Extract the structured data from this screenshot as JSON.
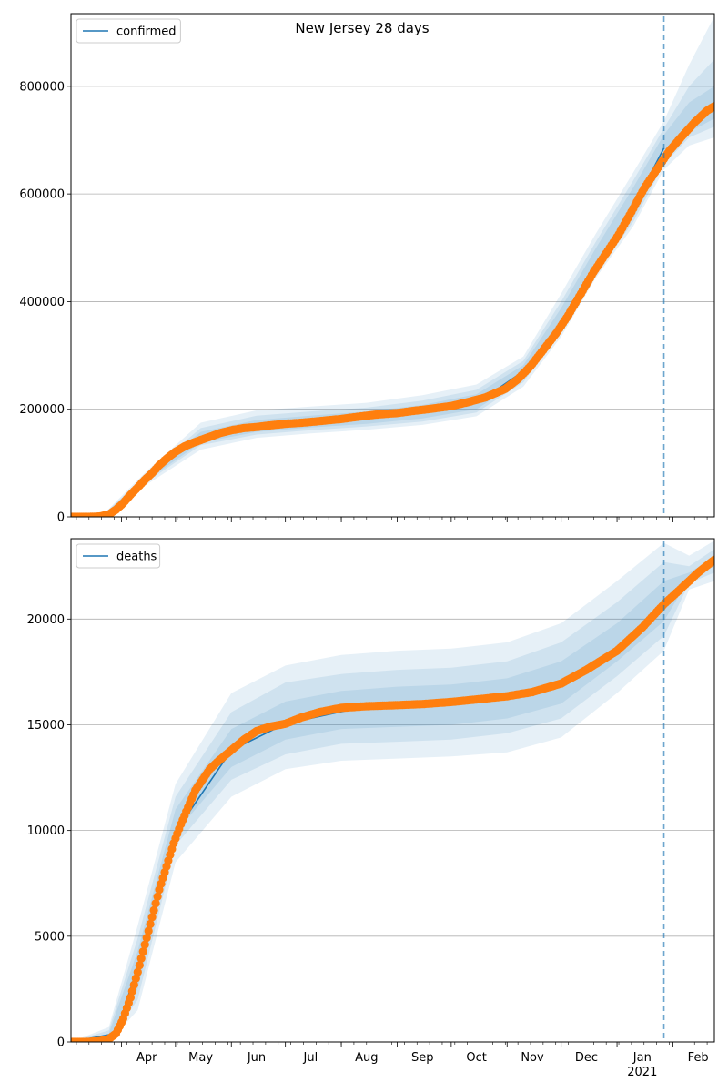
{
  "title": "New Jersey 28 days",
  "x_axis": {
    "month_labels": [
      "Apr",
      "May",
      "Jun",
      "Jul",
      "Aug",
      "Sep",
      "Oct",
      "Nov",
      "Dec",
      "Jan",
      "Feb"
    ],
    "year_label": "2021"
  },
  "colors": {
    "observed": "#ff7f0e",
    "model": "#1f77b4",
    "band": "#1f77b4",
    "grid": "#b0b0b0",
    "cutoff": "#1f77b4"
  },
  "chart_data": [
    {
      "type": "line",
      "title": "New Jersey 28 days",
      "legend": [
        "confirmed"
      ],
      "legend_placement": "top-left",
      "grid": "horizontal",
      "xlim": [
        "2020-03-04",
        "2021-02-24"
      ],
      "ylim": [
        0,
        935000
      ],
      "yticks": [
        0,
        200000,
        400000,
        600000,
        800000
      ],
      "forecast_start": "2021-01-27",
      "observed_points": [
        [
          "2020-03-04",
          0
        ],
        [
          "2020-03-10",
          15
        ],
        [
          "2020-03-15",
          100
        ],
        [
          "2020-03-20",
          890
        ],
        [
          "2020-03-25",
          4400
        ],
        [
          "2020-03-29",
          13400
        ],
        [
          "2020-04-02",
          25600
        ],
        [
          "2020-04-06",
          41000
        ],
        [
          "2020-04-10",
          54600
        ],
        [
          "2020-04-14",
          68800
        ],
        [
          "2020-04-18",
          81400
        ],
        [
          "2020-04-22",
          95900
        ],
        [
          "2020-04-26",
          108000
        ],
        [
          "2020-05-01",
          121000
        ],
        [
          "2020-05-06",
          131000
        ],
        [
          "2020-05-11",
          138000
        ],
        [
          "2020-05-16",
          144000
        ],
        [
          "2020-05-21",
          150000
        ],
        [
          "2020-05-26",
          156000
        ],
        [
          "2020-06-01",
          161000
        ],
        [
          "2020-06-08",
          165000
        ],
        [
          "2020-06-15",
          167000
        ],
        [
          "2020-06-22",
          170000
        ],
        [
          "2020-07-01",
          173000
        ],
        [
          "2020-07-10",
          175000
        ],
        [
          "2020-07-20",
          178000
        ],
        [
          "2020-08-01",
          182000
        ],
        [
          "2020-08-10",
          186000
        ],
        [
          "2020-08-20",
          190000
        ],
        [
          "2020-09-01",
          193000
        ],
        [
          "2020-09-10",
          197000
        ],
        [
          "2020-09-20",
          201000
        ],
        [
          "2020-10-01",
          206000
        ],
        [
          "2020-10-10",
          213000
        ],
        [
          "2020-10-20",
          222000
        ],
        [
          "2020-10-31",
          238000
        ],
        [
          "2020-11-07",
          256000
        ],
        [
          "2020-11-14",
          280000
        ],
        [
          "2020-11-21",
          310000
        ],
        [
          "2020-11-28",
          340000
        ],
        [
          "2020-12-05",
          375000
        ],
        [
          "2020-12-12",
          415000
        ],
        [
          "2020-12-19",
          455000
        ],
        [
          "2020-12-26",
          490000
        ],
        [
          "2021-01-02",
          525000
        ],
        [
          "2021-01-09",
          567000
        ],
        [
          "2021-01-16",
          610000
        ],
        [
          "2021-01-23",
          645000
        ],
        [
          "2021-01-30",
          680000
        ],
        [
          "2021-02-06",
          707000
        ],
        [
          "2021-02-13",
          733000
        ],
        [
          "2021-02-20",
          755000
        ],
        [
          "2021-02-24",
          763000
        ]
      ],
      "model_line": [
        [
          "2020-03-04",
          0
        ],
        [
          "2020-03-15",
          100
        ],
        [
          "2020-03-29",
          13400
        ],
        [
          "2020-04-14",
          68800
        ],
        [
          "2020-05-01",
          121000
        ],
        [
          "2020-05-21",
          150000
        ],
        [
          "2020-06-15",
          167000
        ],
        [
          "2020-07-20",
          178000
        ],
        [
          "2020-08-20",
          190000
        ],
        [
          "2020-09-20",
          201000
        ],
        [
          "2020-10-20",
          222000
        ],
        [
          "2020-11-14",
          280000
        ],
        [
          "2020-12-05",
          375000
        ],
        [
          "2020-12-26",
          493000
        ],
        [
          "2021-01-09",
          575000
        ],
        [
          "2021-01-20",
          640000
        ],
        [
          "2021-01-27",
          685000
        ]
      ],
      "bands": [
        {
          "x": [
            "2020-03-04",
            "2020-03-22",
            "2020-04-15",
            "2020-05-15",
            "2020-06-15",
            "2020-07-15",
            "2020-08-15",
            "2020-09-15",
            "2020-10-15",
            "2020-11-10",
            "2020-12-01",
            "2020-12-20",
            "2021-01-10",
            "2021-01-27",
            "2021-02-10",
            "2021-02-24"
          ],
          "lower": [
            0,
            0,
            60000,
            125000,
            147000,
            155000,
            162000,
            171000,
            187000,
            242000,
            335000,
            443000,
            540000,
            645000,
            690000,
            705000
          ],
          "upper": [
            0,
            5000,
            85000,
            175000,
            198000,
            205000,
            212000,
            226000,
            246000,
            298000,
            415000,
            525000,
            640000,
            735000,
            840000,
            930000
          ]
        },
        {
          "x": [
            "2020-03-04",
            "2020-03-22",
            "2020-04-15",
            "2020-05-15",
            "2020-06-15",
            "2020-07-15",
            "2020-08-15",
            "2020-09-15",
            "2020-10-15",
            "2020-11-10",
            "2020-12-01",
            "2020-12-20",
            "2021-01-10",
            "2021-01-27",
            "2021-02-10",
            "2021-02-24"
          ],
          "lower": [
            0,
            0,
            65000,
            133000,
            153000,
            161000,
            168000,
            177000,
            194000,
            250000,
            348000,
            452000,
            548000,
            655000,
            705000,
            725000
          ],
          "upper": [
            0,
            4000,
            80000,
            165000,
            188000,
            196000,
            203000,
            216000,
            236000,
            290000,
            400000,
            510000,
            625000,
            722000,
            800000,
            850000
          ],
          "level": 2
        },
        {
          "x": [
            "2020-03-04",
            "2020-03-22",
            "2020-04-15",
            "2020-05-15",
            "2020-06-15",
            "2020-07-15",
            "2020-08-15",
            "2020-09-15",
            "2020-10-15",
            "2020-11-10",
            "2020-12-01",
            "2020-12-20",
            "2021-01-10",
            "2021-01-27",
            "2021-02-10",
            "2021-02-24"
          ],
          "lower": [
            0,
            0,
            68000,
            138000,
            158000,
            166000,
            173000,
            183000,
            200000,
            257000,
            358000,
            462000,
            556000,
            663000,
            715000,
            740000
          ],
          "upper": [
            0,
            3000,
            77000,
            158000,
            180000,
            188000,
            196000,
            208000,
            228000,
            282000,
            388000,
            498000,
            612000,
            710000,
            770000,
            800000
          ],
          "level": 3
        }
      ]
    },
    {
      "type": "line",
      "legend": [
        "deaths"
      ],
      "legend_placement": "top-left",
      "grid": "horizontal",
      "xlim": [
        "2020-03-04",
        "2021-02-24"
      ],
      "ylim": [
        0,
        23800
      ],
      "yticks": [
        0,
        5000,
        10000,
        15000,
        20000
      ],
      "forecast_start": "2021-01-27",
      "observed_points": [
        [
          "2020-03-04",
          0
        ],
        [
          "2020-03-12",
          0
        ],
        [
          "2020-03-20",
          40
        ],
        [
          "2020-03-25",
          140
        ],
        [
          "2020-03-29",
          400
        ],
        [
          "2020-04-02",
          1100
        ],
        [
          "2020-04-06",
          2100
        ],
        [
          "2020-04-10",
          3300
        ],
        [
          "2020-04-14",
          4600
        ],
        [
          "2020-04-18",
          5900
        ],
        [
          "2020-04-22",
          7200
        ],
        [
          "2020-04-26",
          8300
        ],
        [
          "2020-04-30",
          9400
        ],
        [
          "2020-05-04",
          10300
        ],
        [
          "2020-05-08",
          11100
        ],
        [
          "2020-05-12",
          11900
        ],
        [
          "2020-05-16",
          12400
        ],
        [
          "2020-05-20",
          12900
        ],
        [
          "2020-05-25",
          13300
        ],
        [
          "2020-06-01",
          13800
        ],
        [
          "2020-06-08",
          14300
        ],
        [
          "2020-06-15",
          14700
        ],
        [
          "2020-06-22",
          14900
        ],
        [
          "2020-07-01",
          15050
        ],
        [
          "2020-07-10",
          15350
        ],
        [
          "2020-07-20",
          15600
        ],
        [
          "2020-08-01",
          15800
        ],
        [
          "2020-08-15",
          15880
        ],
        [
          "2020-09-01",
          15930
        ],
        [
          "2020-09-15",
          15980
        ],
        [
          "2020-10-01",
          16080
        ],
        [
          "2020-10-15",
          16200
        ],
        [
          "2020-11-01",
          16350
        ],
        [
          "2020-11-15",
          16550
        ],
        [
          "2020-12-01",
          16950
        ],
        [
          "2020-12-15",
          17600
        ],
        [
          "2021-01-01",
          18500
        ],
        [
          "2021-01-15",
          19600
        ],
        [
          "2021-01-27",
          20700
        ],
        [
          "2021-02-05",
          21400
        ],
        [
          "2021-02-15",
          22200
        ],
        [
          "2021-02-24",
          22800
        ]
      ],
      "model_line": [
        [
          "2020-03-04",
          0
        ],
        [
          "2020-03-29",
          400
        ],
        [
          "2020-04-14",
          4600
        ],
        [
          "2020-05-04",
          10300
        ],
        [
          "2020-06-01",
          13800
        ],
        [
          "2020-07-01",
          15050
        ],
        [
          "2020-08-15",
          15880
        ],
        [
          "2020-10-01",
          16080
        ],
        [
          "2020-11-15",
          16550
        ],
        [
          "2020-12-15",
          17600
        ],
        [
          "2021-01-15",
          19600
        ],
        [
          "2021-01-27",
          20700
        ]
      ],
      "bands": [
        {
          "x": [
            "2020-03-04",
            "2020-03-25",
            "2020-04-10",
            "2020-05-01",
            "2020-06-01",
            "2020-07-01",
            "2020-08-01",
            "2020-09-01",
            "2020-10-01",
            "2020-11-01",
            "2020-12-01",
            "2021-01-01",
            "2021-01-27",
            "2021-02-10",
            "2021-02-24"
          ],
          "lower": [
            0,
            0,
            1500,
            8500,
            11600,
            12900,
            13300,
            13400,
            13500,
            13700,
            14400,
            16500,
            18500,
            21400,
            21800
          ],
          "upper": [
            0,
            700,
            5500,
            12200,
            16500,
            17800,
            18300,
            18500,
            18600,
            18900,
            19800,
            21800,
            23600,
            23000,
            23700
          ],
          "level": 1
        },
        {
          "x": [
            "2020-03-04",
            "2020-03-25",
            "2020-04-10",
            "2020-05-01",
            "2020-06-01",
            "2020-07-01",
            "2020-08-01",
            "2020-09-01",
            "2020-10-01",
            "2020-11-01",
            "2020-12-01",
            "2021-01-01",
            "2021-01-27",
            "2021-02-10",
            "2021-02-24"
          ],
          "lower": [
            0,
            0,
            2000,
            9300,
            12400,
            13600,
            14100,
            14200,
            14300,
            14600,
            15300,
            17300,
            19200,
            21700,
            22200
          ],
          "upper": [
            0,
            550,
            4900,
            11600,
            15600,
            17000,
            17400,
            17600,
            17700,
            18000,
            18900,
            20800,
            22700,
            22500,
            23300
          ],
          "level": 2
        },
        {
          "x": [
            "2020-03-04",
            "2020-03-25",
            "2020-04-10",
            "2020-05-01",
            "2020-06-01",
            "2020-07-01",
            "2020-08-01",
            "2020-09-01",
            "2020-10-01",
            "2020-11-01",
            "2020-12-01",
            "2021-01-01",
            "2021-01-27",
            "2021-02-10",
            "2021-02-24"
          ],
          "lower": [
            0,
            0,
            2500,
            9900,
            13000,
            14300,
            14800,
            14900,
            15000,
            15300,
            16000,
            18000,
            19900,
            21900,
            22500
          ],
          "upper": [
            0,
            400,
            4300,
            11000,
            14800,
            16100,
            16600,
            16800,
            16900,
            17200,
            18000,
            19800,
            21800,
            22200,
            22900
          ],
          "level": 3
        }
      ]
    }
  ]
}
